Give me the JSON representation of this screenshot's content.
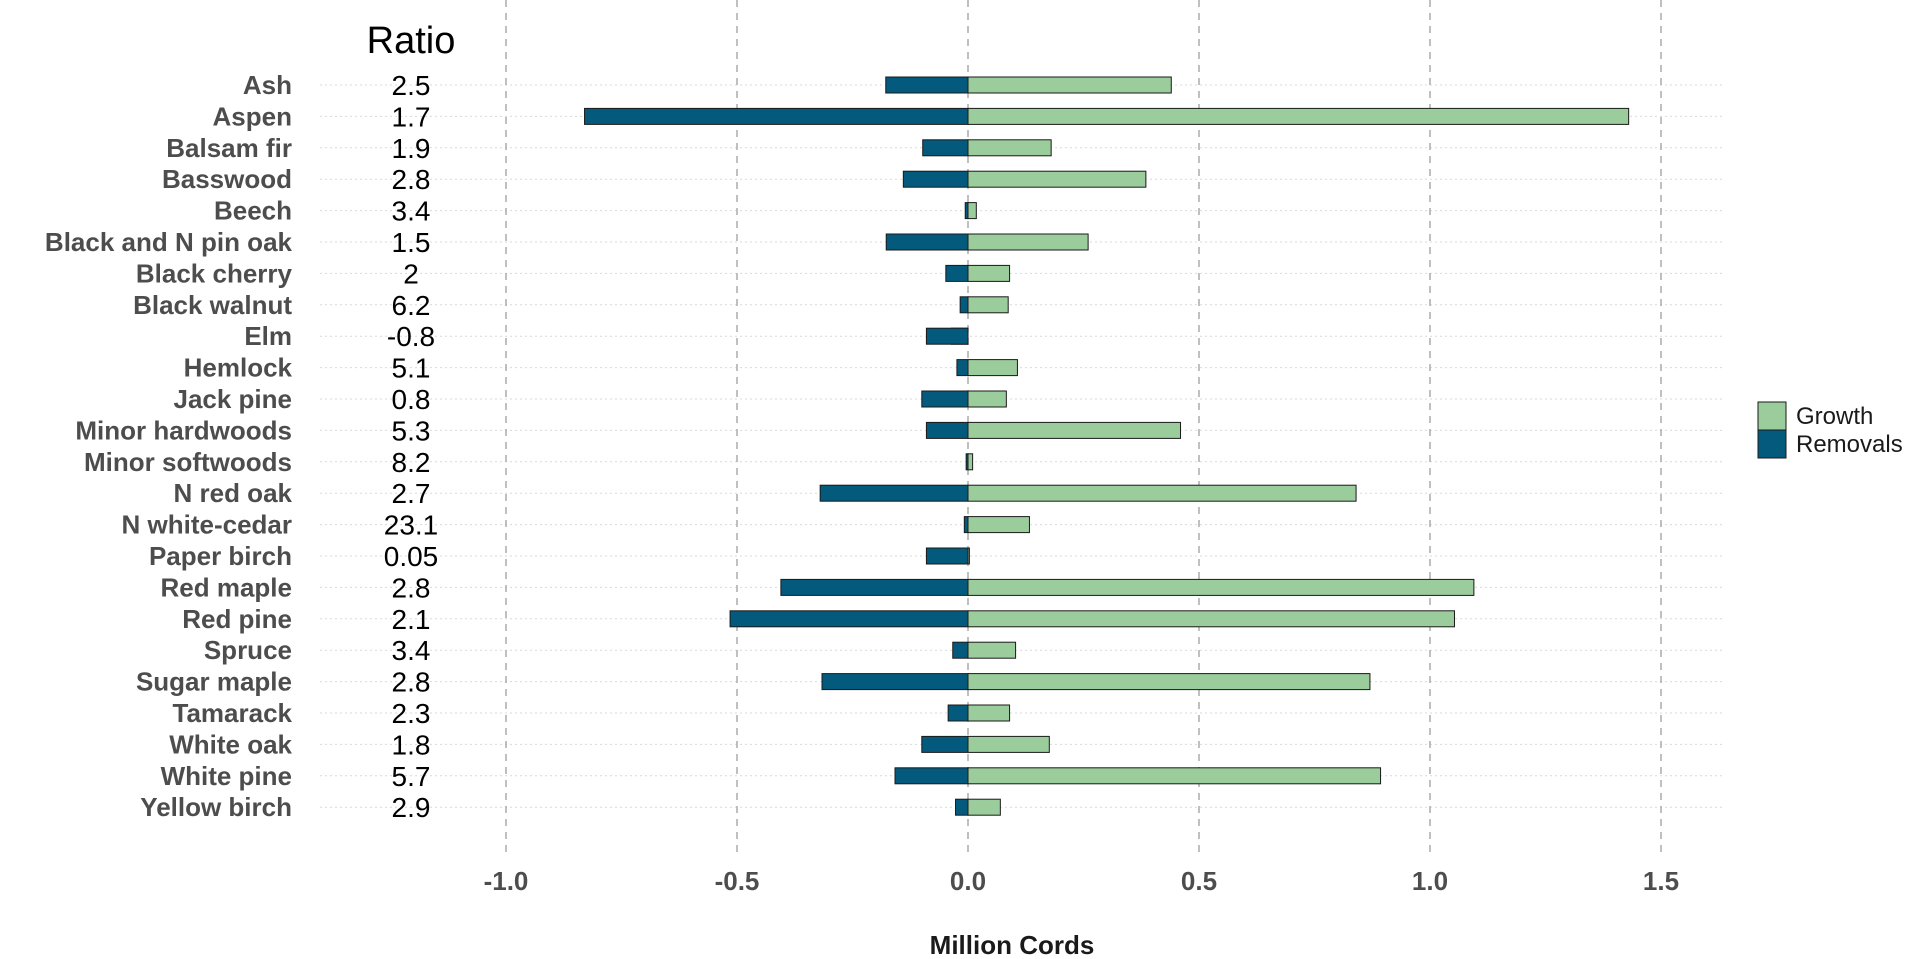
{
  "chart_data": {
    "type": "bar",
    "orientation": "horizontal",
    "stacked": "diverging",
    "categories": [
      "Ash",
      "Aspen",
      "Balsam fir",
      "Basswood",
      "Beech",
      "Black and N pin oak",
      "Black cherry",
      "Black walnut",
      "Elm",
      "Hemlock",
      "Jack pine",
      "Minor hardwoods",
      "Minor softwoods",
      "N red oak",
      "N white-cedar",
      "Paper birch",
      "Red maple",
      "Red pine",
      "Spruce",
      "Sugar maple",
      "Tamarack",
      "White oak",
      "White pine",
      "Yellow birch"
    ],
    "ratio_title": "Ratio",
    "ratios": [
      "2.5",
      "1.7",
      "1.9",
      "2.8",
      "3.4",
      "1.5",
      "2",
      "6.2",
      "-0.8",
      "5.1",
      "0.8",
      "5.3",
      "8.2",
      "2.7",
      "23.1",
      "0.05",
      "2.8",
      "2.1",
      "3.4",
      "2.8",
      "2.3",
      "1.8",
      "5.7",
      "2.9"
    ],
    "series": [
      {
        "name": "Growth",
        "color": "#9bcc9b",
        "values": [
          0.44,
          1.43,
          0.18,
          0.385,
          0.018,
          0.26,
          0.09,
          0.087,
          -0.036,
          0.107,
          0.083,
          0.46,
          0.01,
          0.84,
          0.133,
          0.003,
          1.095,
          1.053,
          0.103,
          0.87,
          0.09,
          0.176,
          0.893,
          0.07
        ]
      },
      {
        "name": "Removals",
        "color": "#045a7d",
        "values": [
          -0.178,
          -0.83,
          -0.098,
          -0.14,
          -0.006,
          -0.177,
          -0.048,
          -0.017,
          -0.09,
          -0.024,
          -0.1,
          -0.09,
          -0.004,
          -0.32,
          -0.008,
          -0.09,
          -0.405,
          -0.515,
          -0.033,
          -0.316,
          -0.043,
          -0.1,
          -0.158,
          -0.027
        ]
      }
    ],
    "xlabel": "Million Cords",
    "ylabel": "",
    "xlim": [
      -1.02,
      1.65
    ],
    "xticks": [
      -1.0,
      -0.5,
      0.0,
      0.5,
      1.0,
      1.5
    ],
    "xtick_labels": [
      "-1.0",
      "-0.5",
      "0.0",
      "0.5",
      "1.0",
      "1.5"
    ],
    "grid": true,
    "legend": "right"
  }
}
